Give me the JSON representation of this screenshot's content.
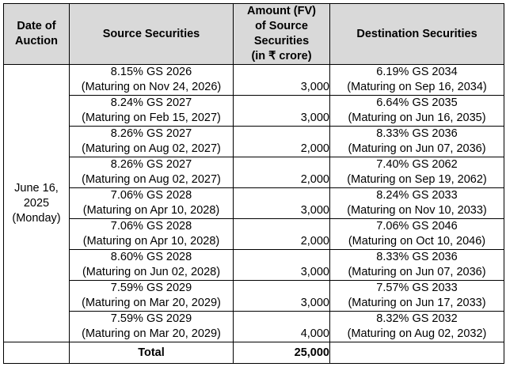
{
  "headers": {
    "date_line1": "Date of",
    "date_line2": "Auction",
    "source": "Source Securities",
    "amount_line1": "Amount (FV)",
    "amount_line2": "of Source",
    "amount_line3": "Securities",
    "amount_line4": "(in ₹ crore)",
    "destination": "Destination Securities"
  },
  "auction_date": {
    "line1": "June 16,",
    "line2": "2025",
    "line3": "(Monday)"
  },
  "rows": [
    {
      "source_name": "8.15% GS 2026",
      "source_maturity": "(Maturing on Nov 24, 2026)",
      "amount": "3,000",
      "dest_name": "6.19% GS 2034",
      "dest_maturity": "(Maturing on Sep 16, 2034)"
    },
    {
      "source_name": "8.24% GS 2027",
      "source_maturity": "(Maturing on Feb 15, 2027)",
      "amount": "3,000",
      "dest_name": "6.64% GS 2035",
      "dest_maturity": "(Maturing on Jun 16, 2035)"
    },
    {
      "source_name": "8.26% GS 2027",
      "source_maturity": "(Maturing on Aug 02, 2027)",
      "amount": "2,000",
      "dest_name": "8.33% GS 2036",
      "dest_maturity": "(Maturing on Jun 07, 2036)"
    },
    {
      "source_name": "8.26% GS 2027",
      "source_maturity": "(Maturing on Aug 02, 2027)",
      "amount": "2,000",
      "dest_name": "7.40% GS 2062",
      "dest_maturity": "(Maturing on Sep 19, 2062)"
    },
    {
      "source_name": "7.06% GS 2028",
      "source_maturity": "(Maturing on Apr 10, 2028)",
      "amount": "3,000",
      "dest_name": "8.24% GS 2033",
      "dest_maturity": "(Maturing on Nov 10, 2033)"
    },
    {
      "source_name": "7.06% GS 2028",
      "source_maturity": "(Maturing on Apr 10, 2028)",
      "amount": "2,000",
      "dest_name": "7.06% GS 2046",
      "dest_maturity": "(Maturing on Oct 10, 2046)"
    },
    {
      "source_name": "8.60% GS 2028",
      "source_maturity": "(Maturing on Jun 02, 2028)",
      "amount": "3,000",
      "dest_name": "8.33% GS 2036",
      "dest_maturity": "(Maturing on Jun 07, 2036)"
    },
    {
      "source_name": "7.59% GS 2029",
      "source_maturity": "(Maturing on Mar 20, 2029)",
      "amount": "3,000",
      "dest_name": "7.57% GS 2033",
      "dest_maturity": "(Maturing on Jun 17, 2033)"
    },
    {
      "source_name": "7.59% GS 2029",
      "source_maturity": "(Maturing on Mar 20, 2029)",
      "amount": "4,000",
      "dest_name": "8.32% GS 2032",
      "dest_maturity": "(Maturing on Aug 02, 2032)"
    }
  ],
  "total": {
    "label": "Total",
    "amount": "25,000"
  }
}
